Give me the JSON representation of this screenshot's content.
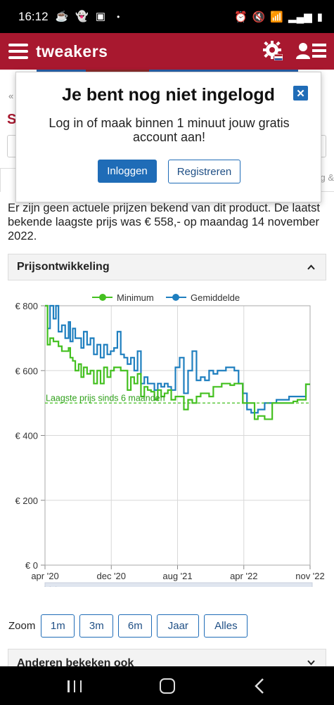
{
  "status": {
    "time": "16:12",
    "dot": "•"
  },
  "app": {
    "logo": "tweakers"
  },
  "under": {
    "left_bits": "«",
    "title_initial": "S",
    "tab_right": "g &"
  },
  "modal": {
    "title": "Je bent nog niet ingelogd",
    "close": "✕",
    "text": "Log in of maak binnen 1 minuut jouw gratis account aan!",
    "login_label": "Inloggen",
    "register_label": "Registreren"
  },
  "notice": "Er zijn geen actuele prijzen bekend van dit product. De laatst bekende laagste prijs was € 558,- op maandag 14 november 2022.",
  "accordion": {
    "title": "Prijsontwikkeling"
  },
  "chart_data": {
    "type": "line",
    "legend": [
      "Minimum",
      "Gemiddelde"
    ],
    "legend_position": "top-center",
    "colors": {
      "Minimum": "#44c020",
      "Gemiddelde": "#1f7fbf",
      "reference": "#44c020"
    },
    "x_ticks": [
      "apr '20",
      "dec '20",
      "aug '21",
      "apr '22",
      "nov '22"
    ],
    "y_ticks": [
      "€ 0",
      "€ 200",
      "€ 400",
      "€ 600",
      "€ 800"
    ],
    "ylim": [
      0,
      800
    ],
    "xlim": [
      0,
      31.5
    ],
    "grid": true,
    "reference_line": {
      "value": 500,
      "label": "Laagste prijs sinds 6 maanden"
    },
    "series": [
      {
        "name": "Minimum",
        "x": [
          0,
          0.3,
          0.6,
          1.0,
          1.3,
          1.6,
          2.0,
          2.4,
          2.8,
          3.0,
          3.3,
          3.6,
          4.0,
          4.3,
          4.6,
          5.0,
          5.4,
          5.8,
          6.2,
          6.6,
          7.0,
          7.4,
          7.8,
          8.2,
          8.6,
          9.0,
          9.4,
          9.8,
          10.2,
          10.6,
          11.0,
          11.4,
          11.8,
          12.2,
          12.6,
          13.0,
          13.4,
          13.8,
          14.2,
          14.6,
          15.0,
          15.5,
          16.0,
          16.5,
          17.0,
          17.5,
          18.0,
          18.5,
          19.0,
          19.5,
          20.0,
          20.5,
          21.0,
          21.5,
          22.0,
          22.5,
          23.0,
          23.5,
          24.0,
          24.5,
          24.9,
          25.3,
          25.7,
          26.1,
          26.5,
          27.0,
          27.5,
          28.0,
          28.5,
          29.0,
          29.5,
          30.0,
          30.5,
          31.0,
          31.5
        ],
        "values": [
          800,
          680,
          700,
          690,
          690,
          675,
          660,
          660,
          670,
          640,
          630,
          600,
          620,
          580,
          610,
          590,
          600,
          560,
          600,
          560,
          610,
          580,
          600,
          610,
          610,
          600,
          600,
          540,
          580,
          560,
          590,
          520,
          550,
          540,
          535,
          510,
          540,
          520,
          530,
          540,
          510,
          520,
          520,
          480,
          510,
          500,
          520,
          530,
          530,
          520,
          550,
          550,
          560,
          560,
          555,
          560,
          560,
          500,
          500,
          500,
          450,
          460,
          460,
          450,
          450,
          500,
          500,
          500,
          500,
          500,
          505,
          510,
          510,
          558,
          558
        ]
      },
      {
        "name": "Gemiddelde",
        "x": [
          0,
          0.3,
          0.6,
          1.0,
          1.3,
          1.6,
          2.0,
          2.4,
          2.8,
          3.0,
          3.3,
          3.6,
          4.0,
          4.3,
          4.6,
          5.0,
          5.4,
          5.8,
          6.2,
          6.6,
          7.0,
          7.4,
          7.8,
          8.2,
          8.6,
          9.0,
          9.4,
          9.8,
          10.2,
          10.6,
          11.0,
          11.4,
          11.8,
          12.2,
          12.6,
          13.0,
          13.4,
          13.8,
          14.2,
          14.6,
          15.0,
          15.5,
          16.0,
          16.5,
          17.0,
          17.5,
          18.0,
          18.5,
          19.0,
          19.5,
          20.0,
          20.5,
          21.0,
          21.5,
          22.0,
          22.5,
          23.0,
          23.5,
          24.0,
          24.5,
          24.9,
          25.3,
          25.7,
          26.1,
          26.5,
          27.0,
          27.5,
          28.0,
          28.5,
          29.0,
          29.5,
          30.0,
          30.5,
          31.0,
          31.5
        ],
        "values": [
          800,
          730,
          800,
          760,
          800,
          720,
          740,
          700,
          750,
          690,
          730,
          700,
          700,
          670,
          720,
          680,
          700,
          650,
          680,
          640,
          680,
          650,
          660,
          670,
          720,
          650,
          640,
          620,
          640,
          600,
          660,
          560,
          580,
          560,
          560,
          540,
          560,
          550,
          560,
          550,
          540,
          610,
          640,
          530,
          600,
          660,
          570,
          580,
          570,
          600,
          590,
          600,
          600,
          610,
          610,
          600,
          560,
          530,
          480,
          470,
          470,
          480,
          480,
          500,
          500,
          500,
          510,
          510,
          510,
          520,
          520,
          520,
          520,
          558,
          558
        ]
      }
    ]
  },
  "zoom": {
    "label": "Zoom",
    "buttons": [
      "1m",
      "3m",
      "6m",
      "Jaar",
      "Alles"
    ]
  },
  "accordion2": {
    "title": "Anderen bekeken ook"
  }
}
